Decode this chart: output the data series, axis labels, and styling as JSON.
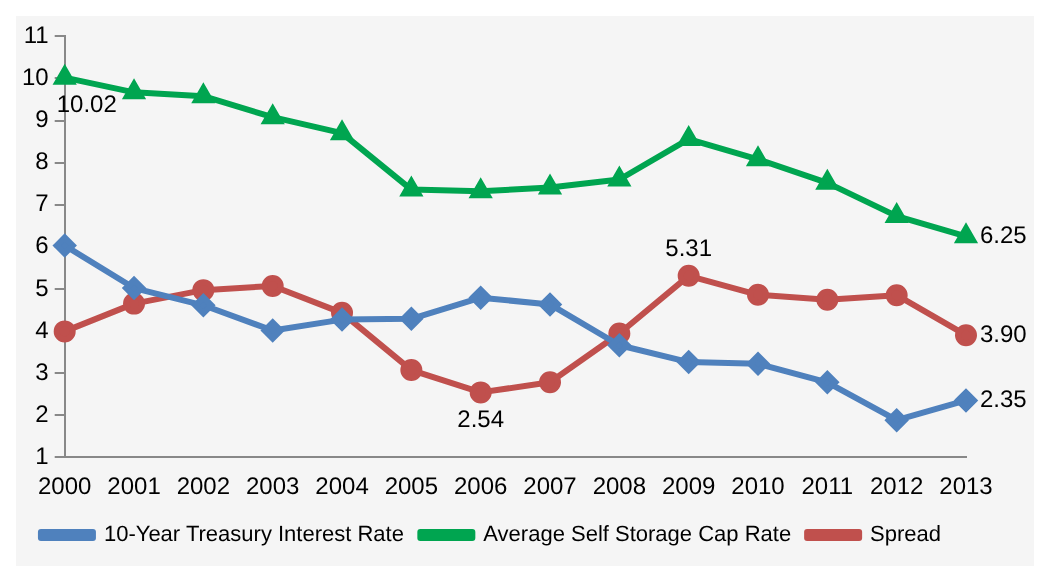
{
  "chart_data": {
    "type": "line",
    "categories": [
      "2000",
      "2001",
      "2002",
      "2003",
      "2004",
      "2005",
      "2006",
      "2007",
      "2008",
      "2009",
      "2010",
      "2011",
      "2012",
      "2013"
    ],
    "ylim": [
      1,
      11
    ],
    "yticks": [
      1,
      2,
      3,
      4,
      5,
      6,
      7,
      8,
      9,
      10,
      11
    ],
    "grid": false,
    "legend": "bottom",
    "series": [
      {
        "name": "10-Year Treasury Interest Rate",
        "color": "#4f81bd",
        "marker": "diamond",
        "values": [
          6.03,
          5.02,
          4.61,
          4.01,
          4.27,
          4.29,
          4.79,
          4.63,
          3.66,
          3.26,
          3.22,
          2.78,
          1.88,
          2.35
        ],
        "value_labels": [
          null,
          null,
          null,
          null,
          null,
          null,
          null,
          null,
          null,
          null,
          null,
          null,
          null,
          "2.35"
        ]
      },
      {
        "name": "Average Self Storage Cap Rate",
        "color": "#00a550",
        "marker": "triangle",
        "values": [
          10.02,
          9.67,
          9.58,
          9.08,
          8.7,
          7.36,
          7.32,
          7.41,
          7.6,
          8.56,
          8.08,
          7.52,
          6.73,
          6.25
        ],
        "value_labels": [
          "10.02",
          null,
          null,
          null,
          null,
          null,
          null,
          null,
          null,
          null,
          null,
          null,
          null,
          "6.25"
        ]
      },
      {
        "name": "Spread",
        "color": "#c0504d",
        "marker": "circle",
        "values": [
          3.99,
          4.65,
          4.97,
          5.07,
          4.43,
          3.07,
          2.54,
          2.78,
          3.94,
          5.31,
          4.86,
          4.74,
          4.85,
          3.9
        ],
        "value_labels": [
          null,
          null,
          null,
          null,
          null,
          null,
          "2.54",
          null,
          null,
          "5.31",
          null,
          null,
          null,
          "3.90"
        ]
      }
    ]
  }
}
